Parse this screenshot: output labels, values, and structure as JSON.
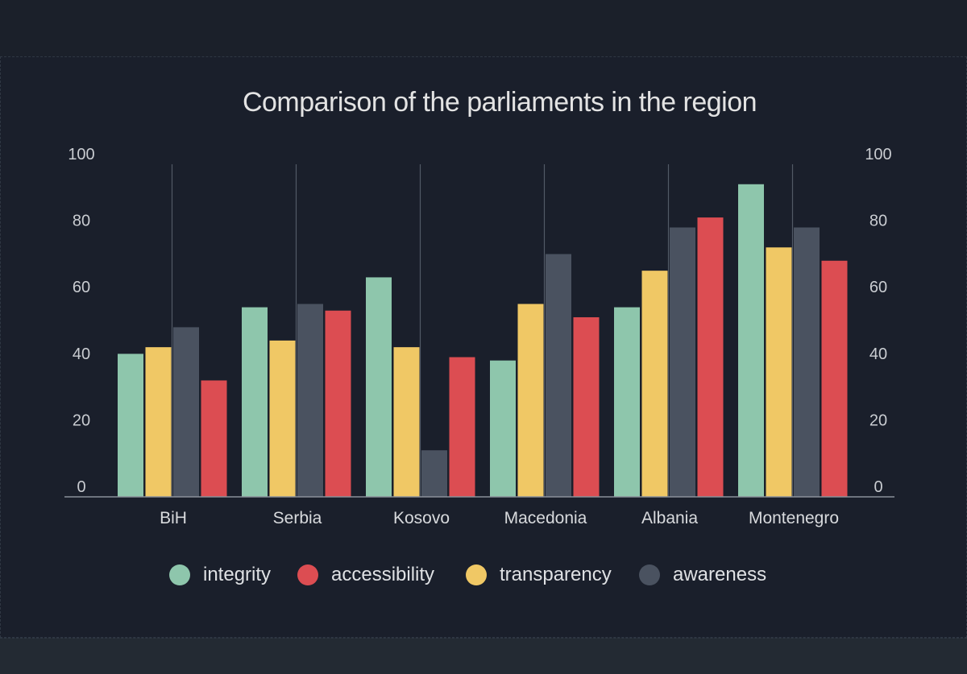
{
  "chart_data": {
    "type": "bar",
    "title": "Comparison of the parliaments in the region",
    "categories": [
      "BiH",
      "Serbia",
      "Kosovo",
      "Macedonia",
      "Albania",
      "Montenegro"
    ],
    "series": [
      {
        "name": "integrity",
        "color": "#8ec6ac",
        "values": [
          43,
          57,
          66,
          41,
          57,
          94
        ]
      },
      {
        "name": "transparency",
        "color": "#f0c865",
        "values": [
          45,
          47,
          45,
          58,
          68,
          75
        ]
      },
      {
        "name": "awareness",
        "color": "#4a5260",
        "values": [
          51,
          58,
          14,
          73,
          81,
          81
        ]
      },
      {
        "name": "accessibility",
        "color": "#dc4d52",
        "values": [
          35,
          56,
          42,
          54,
          84,
          71
        ]
      }
    ],
    "legend_order": [
      "integrity",
      "accessibility",
      "transparency",
      "awareness"
    ],
    "ylim": [
      0,
      100
    ],
    "yticks": [
      0,
      20,
      40,
      60,
      80,
      100
    ],
    "dual_y_axis": true,
    "grid": "vertical lines between categories",
    "legend_position": "bottom"
  }
}
